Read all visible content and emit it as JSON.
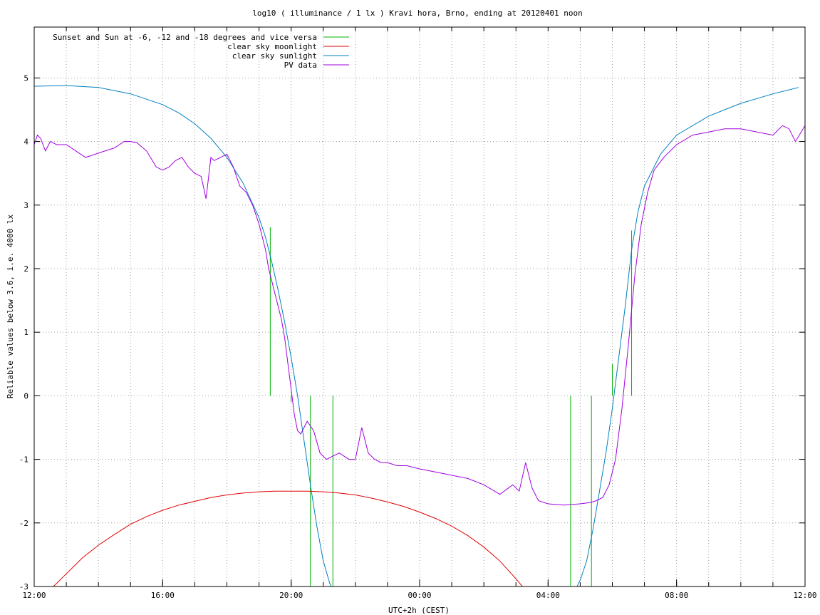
{
  "chart_data": {
    "type": "line",
    "title": "log10 ( illuminance / 1 lx ) Kravi hora, Brno, ending at 20120401 noon",
    "xlabel": "UTC+2h (CEST)",
    "ylabel": "Reliable values below 3.6, i.e. 4000 lx",
    "xlim": [
      12,
      36
    ],
    "ylim": [
      -3,
      5.8
    ],
    "x_ticks": [
      {
        "x": 12,
        "label": "12:00"
      },
      {
        "x": 16,
        "label": "16:00"
      },
      {
        "x": 20,
        "label": "20:00"
      },
      {
        "x": 24,
        "label": "00:00"
      },
      {
        "x": 28,
        "label": "04:00"
      },
      {
        "x": 32,
        "label": "08:00"
      },
      {
        "x": 36,
        "label": "12:00"
      }
    ],
    "y_ticks": [
      -3,
      -2,
      -1,
      0,
      1,
      2,
      3,
      4,
      5
    ],
    "grid": true,
    "legend_position": "top-left",
    "series": [
      {
        "name": "Sunset and Sun at -6, -12 and -18 degrees and vice versa",
        "color": "#00b000",
        "style": "vertical-lines",
        "points": [
          {
            "x": 19.35,
            "y0": 0,
            "y1": 2.65
          },
          {
            "x": 20.0,
            "y0": 0,
            "y1": -0.1
          },
          {
            "x": 20.6,
            "y0": -3,
            "y1": 0
          },
          {
            "x": 21.3,
            "y0": -3,
            "y1": 0
          },
          {
            "x": 28.7,
            "y0": -3,
            "y1": 0
          },
          {
            "x": 29.35,
            "y0": -3,
            "y1": 0
          },
          {
            "x": 30.0,
            "y0": 0,
            "y1": 0.5
          },
          {
            "x": 30.6,
            "y0": 0,
            "y1": 2.6
          }
        ]
      },
      {
        "name": "clear sky moonlight",
        "color": "#e00000",
        "x": [
          12.6,
          13.0,
          13.5,
          14.0,
          14.5,
          15.0,
          15.5,
          16.0,
          16.5,
          17.0,
          17.5,
          18.0,
          18.5,
          19.0,
          19.5,
          20.0,
          20.5,
          21.0,
          21.5,
          22.0,
          22.5,
          23.0,
          23.5,
          24.0,
          24.5,
          25.0,
          25.5,
          26.0,
          26.5,
          27.0,
          27.2
        ],
        "y": [
          -3.0,
          -2.8,
          -2.55,
          -2.35,
          -2.18,
          -2.02,
          -1.9,
          -1.8,
          -1.72,
          -1.66,
          -1.6,
          -1.56,
          -1.53,
          -1.51,
          -1.5,
          -1.5,
          -1.5,
          -1.51,
          -1.53,
          -1.56,
          -1.61,
          -1.67,
          -1.74,
          -1.83,
          -1.93,
          -2.05,
          -2.2,
          -2.38,
          -2.6,
          -2.88,
          -3.0
        ]
      },
      {
        "name": "clear sky sunlight",
        "color": "#0080c0",
        "x": [
          12.0,
          13.0,
          14.0,
          15.0,
          16.0,
          16.5,
          17.0,
          17.5,
          18.0,
          18.5,
          19.0,
          19.2,
          19.4,
          19.6,
          19.8,
          20.0,
          20.2,
          20.4,
          20.6,
          20.8,
          21.0,
          21.2,
          21.25,
          28.9,
          29.0,
          29.2,
          29.4,
          29.6,
          29.8,
          30.0,
          30.2,
          30.4,
          30.6,
          30.8,
          31.0,
          31.5,
          32.0,
          33.0,
          34.0,
          35.0,
          35.8
        ],
        "y": [
          4.87,
          4.88,
          4.85,
          4.75,
          4.58,
          4.45,
          4.28,
          4.05,
          3.75,
          3.35,
          2.8,
          2.5,
          2.1,
          1.65,
          1.15,
          0.6,
          0.0,
          -0.7,
          -1.4,
          -2.05,
          -2.6,
          -2.95,
          -3.0,
          -3.0,
          -2.9,
          -2.6,
          -2.1,
          -1.5,
          -0.9,
          -0.2,
          0.6,
          1.4,
          2.3,
          2.9,
          3.3,
          3.8,
          4.1,
          4.4,
          4.6,
          4.75,
          4.85
        ]
      },
      {
        "name": "PV data",
        "color": "#a000e0",
        "x": [
          12.0,
          12.1,
          12.2,
          12.35,
          12.5,
          12.7,
          13.0,
          13.3,
          13.6,
          13.9,
          14.2,
          14.5,
          14.8,
          15.0,
          15.2,
          15.5,
          15.8,
          16.0,
          16.2,
          16.4,
          16.6,
          16.8,
          17.0,
          17.2,
          17.35,
          17.5,
          17.6,
          17.8,
          18.0,
          18.2,
          18.4,
          18.6,
          18.8,
          19.0,
          19.2,
          19.3,
          19.4,
          19.5,
          19.6,
          19.7,
          19.8,
          19.9,
          20.0,
          20.1,
          20.2,
          20.3,
          20.5,
          20.7,
          20.9,
          21.1,
          21.3,
          21.5,
          21.8,
          22.0,
          22.2,
          22.4,
          22.6,
          22.8,
          23.0,
          23.3,
          23.6,
          24.0,
          24.5,
          25.0,
          25.5,
          26.0,
          26.5,
          26.9,
          27.1,
          27.3,
          27.5,
          27.7,
          28.0,
          28.5,
          29.0,
          29.3,
          29.5,
          29.7,
          29.9,
          30.1,
          30.3,
          30.5,
          30.7,
          30.9,
          31.1,
          31.3,
          31.6,
          32.0,
          32.5,
          33.0,
          33.5,
          34.0,
          34.5,
          35.0,
          35.3,
          35.5,
          35.7,
          36.0
        ],
        "y": [
          3.95,
          4.1,
          4.05,
          3.85,
          4.0,
          3.95,
          3.95,
          3.85,
          3.75,
          3.8,
          3.85,
          3.9,
          4.0,
          4.0,
          3.98,
          3.85,
          3.6,
          3.55,
          3.6,
          3.7,
          3.75,
          3.6,
          3.5,
          3.45,
          3.1,
          3.75,
          3.7,
          3.75,
          3.8,
          3.6,
          3.3,
          3.2,
          3.0,
          2.7,
          2.3,
          2.0,
          1.8,
          1.6,
          1.4,
          1.2,
          0.9,
          0.5,
          0.1,
          -0.3,
          -0.55,
          -0.6,
          -0.4,
          -0.55,
          -0.9,
          -1.0,
          -0.95,
          -0.9,
          -1.0,
          -1.0,
          -0.5,
          -0.9,
          -1.0,
          -1.05,
          -1.05,
          -1.1,
          -1.1,
          -1.15,
          -1.2,
          -1.25,
          -1.3,
          -1.4,
          -1.55,
          -1.4,
          -1.5,
          -1.05,
          -1.45,
          -1.65,
          -1.7,
          -1.72,
          -1.7,
          -1.68,
          -1.65,
          -1.6,
          -1.4,
          -1.0,
          -0.2,
          0.8,
          1.9,
          2.7,
          3.2,
          3.55,
          3.75,
          3.95,
          4.1,
          4.15,
          4.2,
          4.2,
          4.15,
          4.1,
          4.25,
          4.2,
          4.0,
          4.25
        ]
      }
    ]
  }
}
